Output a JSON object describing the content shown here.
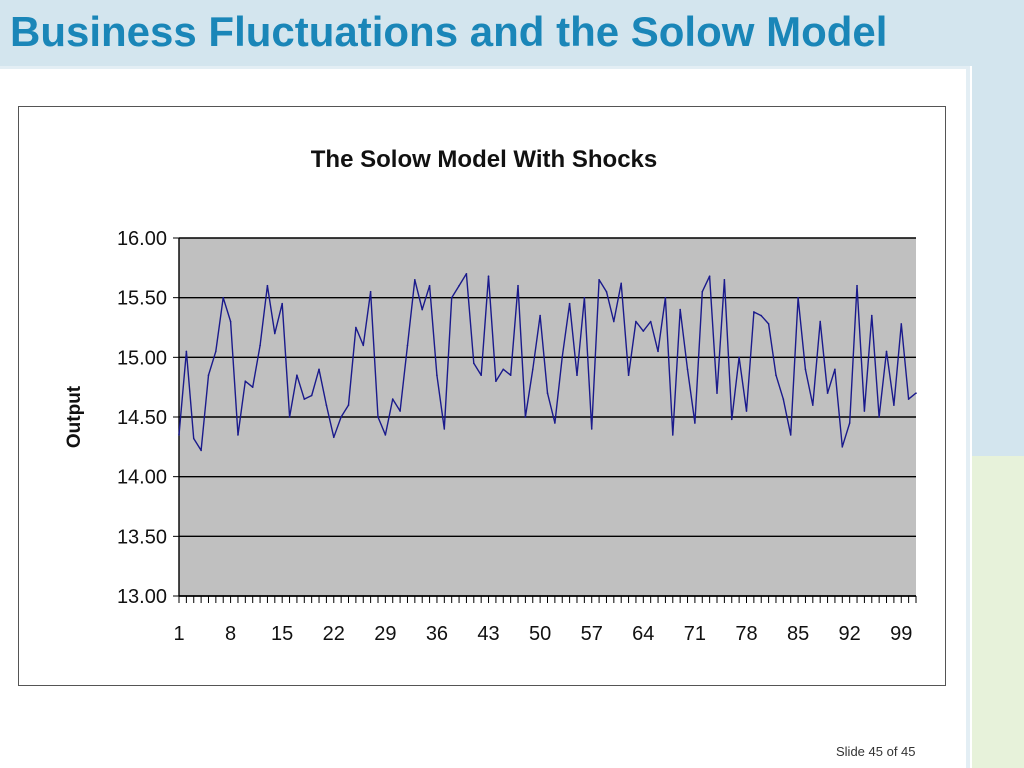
{
  "slide": {
    "title": "Business Fluctuations and the Solow Model",
    "footer": "Slide 45 of 45"
  },
  "colors": {
    "title": "#1a86b8",
    "band_blue": "#d3e5ee",
    "band_green": "#e7f2da",
    "plot_bg": "#c0c0c0",
    "series_line": "#1a1a8c"
  },
  "chart_data": {
    "type": "line",
    "title": "The Solow Model With Shocks",
    "xlabel": "",
    "ylabel": "Output",
    "ylim": [
      13.0,
      16.0
    ],
    "yticks": [
      "16.00",
      "15.50",
      "15.00",
      "14.50",
      "14.00",
      "13.50",
      "13.00"
    ],
    "xtick_labels": [
      "1",
      "8",
      "15",
      "22",
      "29",
      "36",
      "43",
      "50",
      "57",
      "64",
      "71",
      "78",
      "85",
      "92",
      "99"
    ],
    "grid": true,
    "legend": "none",
    "series": [
      {
        "x": [
          1,
          2,
          3,
          4,
          5,
          6,
          7,
          8,
          9,
          10,
          11,
          12,
          13,
          14,
          15,
          16,
          17,
          18,
          19,
          20,
          21,
          22,
          23,
          24,
          25,
          26,
          27,
          28,
          29,
          30,
          31,
          32,
          33,
          34,
          35,
          36,
          37,
          38,
          39,
          40,
          41,
          42,
          43,
          44,
          45,
          46,
          47,
          48,
          49,
          50,
          51,
          52,
          53,
          54,
          55,
          56,
          57,
          58,
          59,
          60,
          61,
          62,
          63,
          64,
          65,
          66,
          67,
          68,
          69,
          70,
          71,
          72,
          73,
          74,
          75,
          76,
          77,
          78,
          79,
          80,
          81,
          82,
          83,
          84,
          85,
          86,
          87,
          88,
          89,
          90,
          91,
          92,
          93,
          94,
          95,
          96,
          97,
          98,
          99,
          100,
          101
        ],
        "values": [
          14.35,
          15.05,
          14.32,
          14.22,
          14.85,
          15.05,
          15.5,
          15.3,
          14.35,
          14.8,
          14.75,
          15.1,
          15.6,
          15.2,
          15.45,
          14.5,
          14.85,
          14.65,
          14.68,
          14.9,
          14.6,
          14.33,
          14.5,
          14.6,
          15.25,
          15.1,
          15.55,
          14.5,
          14.35,
          14.65,
          14.55,
          15.1,
          15.65,
          15.4,
          15.6,
          14.85,
          14.4,
          15.5,
          15.6,
          15.7,
          14.95,
          14.85,
          15.68,
          14.8,
          14.9,
          14.85,
          15.6,
          14.5,
          14.9,
          15.35,
          14.7,
          14.45,
          15.0,
          15.45,
          14.85,
          15.5,
          14.4,
          15.65,
          15.55,
          15.3,
          15.62,
          14.85,
          15.3,
          15.22,
          15.3,
          15.05,
          15.5,
          14.35,
          15.4,
          14.9,
          14.45,
          15.55,
          15.68,
          14.7,
          15.65,
          14.48,
          15.0,
          14.55,
          15.38,
          15.35,
          15.28,
          14.85,
          14.65,
          14.35,
          15.5,
          14.9,
          14.6,
          15.3,
          14.7,
          14.9,
          14.25,
          14.45,
          15.6,
          14.55,
          15.35,
          14.5,
          15.05,
          14.6,
          15.28,
          14.65,
          14.7
        ]
      }
    ]
  }
}
